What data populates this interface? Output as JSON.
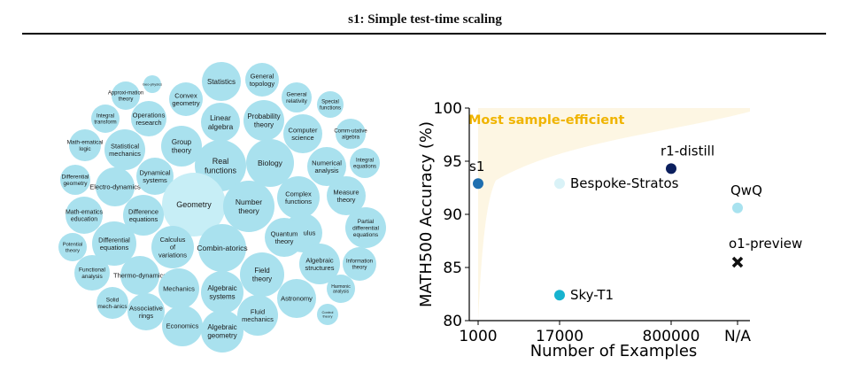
{
  "header": {
    "title": "s1: Simple test-time scaling"
  },
  "topic_bubbles": [
    {
      "label": "Statistics"
    },
    {
      "label": "General topology"
    },
    {
      "label": "Approxi-mation theory"
    },
    {
      "label": "Geo-physics"
    },
    {
      "label": "Convex geometry"
    },
    {
      "label": "General relativity"
    },
    {
      "label": "Special functions"
    },
    {
      "label": "Integral transform"
    },
    {
      "label": "Operations research"
    },
    {
      "label": "Linear algebra"
    },
    {
      "label": "Probability theory"
    },
    {
      "label": "Computer science"
    },
    {
      "label": "Comm-utative algebra"
    },
    {
      "label": "Math-ematical logic"
    },
    {
      "label": "Statistical mechanics"
    },
    {
      "label": "Group theory"
    },
    {
      "label": "Real functions"
    },
    {
      "label": "Biology"
    },
    {
      "label": "Numerical analysis"
    },
    {
      "label": "Integral equations"
    },
    {
      "label": "Differential geometry"
    },
    {
      "label": "Electro-dynamics"
    },
    {
      "label": "Dynamical systems"
    },
    {
      "label": "Measure theory"
    },
    {
      "label": "Geometry"
    },
    {
      "label": "Number theory"
    },
    {
      "label": "Complex functions"
    },
    {
      "label": "Math-ematics education"
    },
    {
      "label": "Difference equations"
    },
    {
      "label": "Calculus"
    },
    {
      "label": "Partial differential equations"
    },
    {
      "label": "Quantum theory"
    },
    {
      "label": "Potential theory"
    },
    {
      "label": "Differential equations"
    },
    {
      "label": "Calculus of variations"
    },
    {
      "label": "Combin-atorics"
    },
    {
      "label": "Algebraic structures"
    },
    {
      "label": "Information theory"
    },
    {
      "label": "Functional analysis"
    },
    {
      "label": "Thermo-dynamics"
    },
    {
      "label": "Field theory"
    },
    {
      "label": "Solid mech-anics"
    },
    {
      "label": "Mechanics"
    },
    {
      "label": "Algebraic systems"
    },
    {
      "label": "Astronomy"
    },
    {
      "label": "Harmonic analysis"
    },
    {
      "label": "Associative rings"
    },
    {
      "label": "Fluid mechanics"
    },
    {
      "label": "Control theory"
    },
    {
      "label": "Economics"
    },
    {
      "label": "Algebraic geometry"
    }
  ],
  "chart_data": {
    "type": "scatter",
    "xlabel": "Number of Examples",
    "ylabel": "MATH500 Accuracy (%)",
    "categories": [
      "1000",
      "17000",
      "800000",
      "N/A"
    ],
    "ylim": [
      80,
      100
    ],
    "yticks": [
      80,
      85,
      90,
      95,
      100
    ],
    "grid": false,
    "annotation": "Most sample-efficient",
    "region_color": "#fdf6e3",
    "annotation_color": "#f0b400",
    "points": [
      {
        "name": "s1",
        "x": "1000",
        "y": 92.9,
        "color": "#1f6fb0"
      },
      {
        "name": "Bespoke-Stratos",
        "x": "17000",
        "y": 92.9,
        "color": "#d9f2f7"
      },
      {
        "name": "r1-distill",
        "x": "800000",
        "y": 94.3,
        "color": "#0b1f5e"
      },
      {
        "name": "QwQ",
        "x": "N/A",
        "y": 90.6,
        "color": "#a8e2ef"
      },
      {
        "name": "o1-preview",
        "x": "N/A",
        "y": 85.5,
        "color": "#111111",
        "marker": "x"
      },
      {
        "name": "Sky-T1",
        "x": "17000",
        "y": 82.4,
        "color": "#17b3cf"
      }
    ]
  }
}
